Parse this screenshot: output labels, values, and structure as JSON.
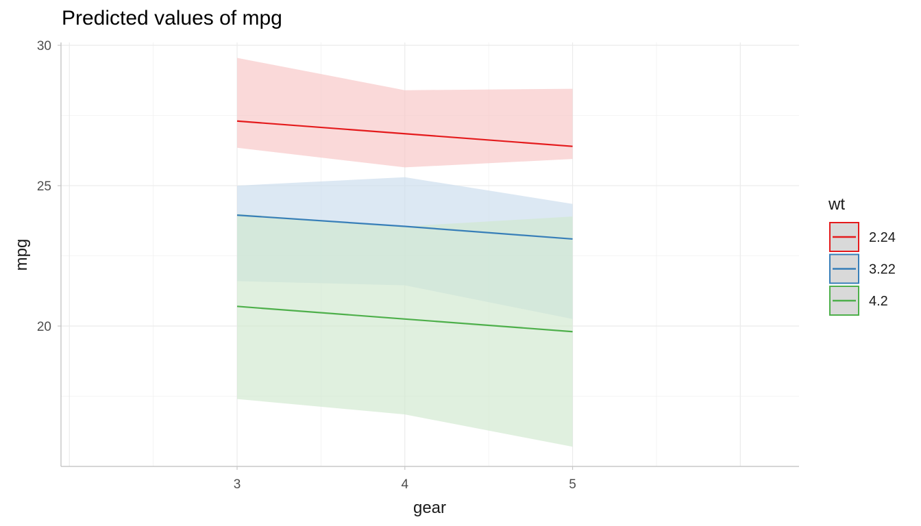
{
  "chart_data": {
    "type": "line",
    "title": "Predicted values of mpg",
    "xlabel": "gear",
    "ylabel": "mpg",
    "x": [
      3,
      4,
      5
    ],
    "xlim": [
      1.95,
      6.35
    ],
    "ylim": [
      15.0,
      30.1
    ],
    "xticks": [
      3,
      4,
      5
    ],
    "yticks": [
      20,
      25,
      30
    ],
    "grid": true,
    "legend": {
      "title": "wt",
      "position": "right"
    },
    "series": [
      {
        "name": "2.24",
        "color": "#e41a1c",
        "fill": "#f7c4c5",
        "values": [
          27.3,
          26.85,
          26.4
        ],
        "lower": [
          26.35,
          25.65,
          25.95
        ],
        "upper": [
          29.55,
          28.4,
          28.45
        ]
      },
      {
        "name": "3.22",
        "color": "#377eb8",
        "fill": "#c9dbec",
        "values": [
          23.95,
          23.55,
          23.1
        ],
        "lower": [
          21.6,
          21.45,
          20.25
        ],
        "upper": [
          25.0,
          25.3,
          24.35
        ]
      },
      {
        "name": "4.2",
        "color": "#4daf4a",
        "fill": "#cfe8ce",
        "values": [
          20.7,
          20.25,
          19.8
        ],
        "lower": [
          17.4,
          16.85,
          15.7
        ],
        "upper": [
          24.0,
          23.55,
          23.9
        ]
      }
    ]
  }
}
